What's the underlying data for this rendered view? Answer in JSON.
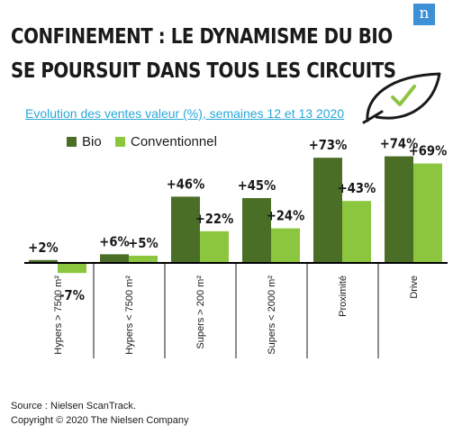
{
  "brand": {
    "badge": "n"
  },
  "header": {
    "title_line1": "CONFINEMENT : LE DYNAMISME DU BIO",
    "title_line2": "SE POURSUIT DANS TOUS LES CIRCUITS",
    "subtitle": "Evolution des ventes valeur (%), semaines 12 et 13 2020"
  },
  "footer": {
    "source": "Source : Nielsen ScanTrack.",
    "copyright": "Copyright © 2020 The Nielsen Company"
  },
  "colors": {
    "bio": "#4b6e26",
    "conventionnel": "#8cc63f",
    "axis": "#000000"
  },
  "icons": {
    "decoration": "leaf-check-icon"
  },
  "chart_data": {
    "type": "bar",
    "title": "Evolution des ventes valeur (%), semaines 12 et 13 2020",
    "categories": [
      "Hypers > 7500 m²",
      "Hypers < 7500 m²",
      "Supers > 200 m²",
      "Supers < 2000 m²",
      "Proximité",
      "Drive"
    ],
    "series": [
      {
        "name": "Bio",
        "values": [
          2,
          6,
          46,
          45,
          73,
          74
        ],
        "labels": [
          "+2%",
          "+6%",
          "+46%",
          "+45%",
          "+73%",
          "+74%"
        ]
      },
      {
        "name": "Conventionnel",
        "values": [
          -7,
          5,
          22,
          24,
          43,
          69
        ],
        "labels": [
          "-7%",
          "+5%",
          "+22%",
          "+24%",
          "+43%",
          "+69%"
        ]
      }
    ],
    "ylim": [
      -7,
      74
    ],
    "legend": "top-left",
    "grid": false
  }
}
